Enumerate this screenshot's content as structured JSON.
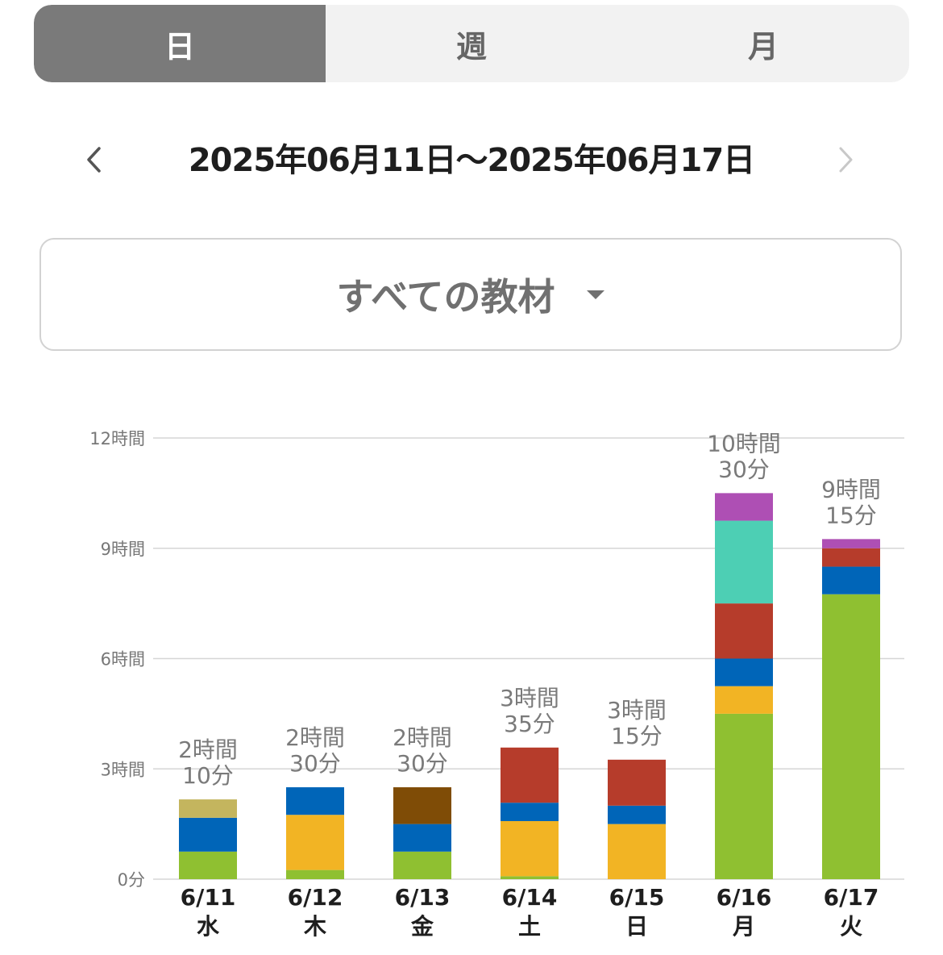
{
  "tabs": [
    {
      "label": "日",
      "active": true
    },
    {
      "label": "週",
      "active": false
    },
    {
      "label": "月",
      "active": false
    }
  ],
  "date_range": "2025年06月11日〜2025年06月17日",
  "nav": {
    "prev_icon": "chevron-left-icon",
    "next_icon": "chevron-right-icon"
  },
  "material_select": {
    "label": "すべての教材",
    "icon": "caret-down-icon"
  },
  "colors": {
    "active_tab": "#7a7a7a",
    "inactive_tab_bg": "#f2f2f2",
    "series": [
      "#8fc031",
      "#f2b424",
      "#0065b8",
      "#b63c2b",
      "#4dcfb4",
      "#ae4fb4",
      "#c4b55e",
      "#7f4c06"
    ]
  },
  "chart_data": {
    "type": "bar",
    "stacked": true,
    "categories": [
      {
        "date": "6/11",
        "weekday": "水"
      },
      {
        "date": "6/12",
        "weekday": "木"
      },
      {
        "date": "6/13",
        "weekday": "金"
      },
      {
        "date": "6/14",
        "weekday": "土"
      },
      {
        "date": "6/15",
        "weekday": "日"
      },
      {
        "date": "6/16",
        "weekday": "月"
      },
      {
        "date": "6/17",
        "weekday": "火"
      }
    ],
    "unit": "hours",
    "ylim": [
      0,
      12
    ],
    "yticks": [
      {
        "value": 0,
        "label": "0分"
      },
      {
        "value": 3,
        "label": "3時間"
      },
      {
        "value": 6,
        "label": "6時間"
      },
      {
        "value": 9,
        "label": "9時間"
      },
      {
        "value": 12,
        "label": "12時間"
      }
    ],
    "grid": true,
    "series": [
      {
        "color": "#8fc031",
        "values": [
          0.75,
          0.25,
          0.75,
          0.08,
          0,
          4.5,
          7.75
        ]
      },
      {
        "color": "#f2b424",
        "values": [
          0,
          1.5,
          0,
          1.5,
          1.5,
          0.75,
          0
        ]
      },
      {
        "color": "#0065b8",
        "values": [
          0.92,
          0.75,
          0.75,
          0.5,
          0.5,
          0.75,
          0.75
        ]
      },
      {
        "color": "#b63c2b",
        "values": [
          0,
          0,
          0,
          1.5,
          1.25,
          1.5,
          0.5
        ]
      },
      {
        "color": "#4dcfb4",
        "values": [
          0,
          0,
          0,
          0,
          0,
          2.25,
          0
        ]
      },
      {
        "color": "#ae4fb4",
        "values": [
          0,
          0,
          0,
          0,
          0,
          0.75,
          0.25
        ]
      },
      {
        "color": "#c4b55e",
        "values": [
          0.5,
          0,
          0,
          0,
          0,
          0,
          0
        ]
      },
      {
        "color": "#7f4c06",
        "values": [
          0,
          0,
          1.0,
          0,
          0,
          0,
          0
        ]
      }
    ],
    "totals": [
      {
        "line1": "2時間",
        "line2": "10分"
      },
      {
        "line1": "2時間",
        "line2": "30分"
      },
      {
        "line1": "2時間",
        "line2": "30分"
      },
      {
        "line1": "3時間",
        "line2": "35分"
      },
      {
        "line1": "3時間",
        "line2": "15分"
      },
      {
        "line1": "10時間",
        "line2": "30分"
      },
      {
        "line1": "9時間",
        "line2": "15分"
      }
    ]
  }
}
